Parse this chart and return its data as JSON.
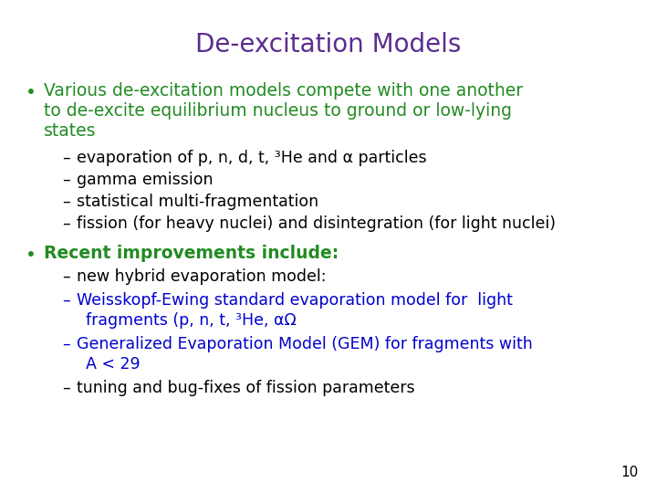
{
  "title": "De-excitation Models",
  "title_color": "#5B2D8E",
  "title_fontsize": 20,
  "background_color": "#FFFFFF",
  "green_color": "#228B22",
  "black_color": "#000000",
  "blue_color": "#0000CC",
  "page_number": "10",
  "bullet1_color": "#228B22",
  "bullet1_lines": [
    "Various de-excitation models compete with one another",
    "to de-excite equilibrium nucleus to ground or low-lying",
    "states"
  ],
  "sub1_color": "#000000",
  "sub1_items": [
    "evaporation of p, n, d, t, ³He and α particles",
    "gamma emission",
    "statistical multi-fragmentation",
    "fission (for heavy nuclei) and disintegration (for light nuclei)"
  ],
  "bullet2_color": "#228B22",
  "bullet2_text": "Recent improvements include:",
  "sub2_items": [
    {
      "lines": [
        "new hybrid evaporation model:"
      ],
      "color": "#000000"
    },
    {
      "lines": [
        "Weisskopf-Ewing standard evaporation model for  light",
        "fragments (p, n, t, ³He, αΩ"
      ],
      "color": "#0000CC"
    },
    {
      "lines": [
        "Generalized Evaporation Model (GEM) for fragments with",
        "A < 29"
      ],
      "color": "#0000CC"
    },
    {
      "lines": [
        "tuning and bug-fixes of fission parameters"
      ],
      "color": "#000000"
    }
  ]
}
